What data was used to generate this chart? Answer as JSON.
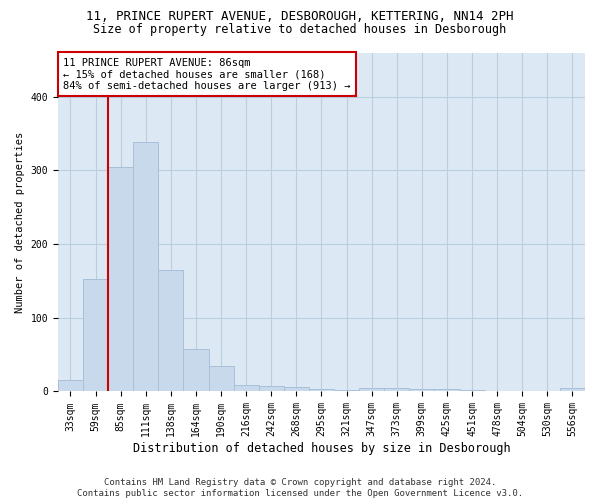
{
  "title": "11, PRINCE RUPERT AVENUE, DESBOROUGH, KETTERING, NN14 2PH",
  "subtitle": "Size of property relative to detached houses in Desborough",
  "xlabel": "Distribution of detached houses by size in Desborough",
  "ylabel": "Number of detached properties",
  "categories": [
    "33sqm",
    "59sqm",
    "85sqm",
    "111sqm",
    "138sqm",
    "164sqm",
    "190sqm",
    "216sqm",
    "242sqm",
    "268sqm",
    "295sqm",
    "321sqm",
    "347sqm",
    "373sqm",
    "399sqm",
    "425sqm",
    "451sqm",
    "478sqm",
    "504sqm",
    "530sqm",
    "556sqm"
  ],
  "values": [
    15,
    153,
    305,
    338,
    165,
    57,
    34,
    9,
    8,
    6,
    3,
    2,
    5,
    5,
    4,
    3,
    2,
    0,
    0,
    0,
    5
  ],
  "bar_color": "#c9d9ec",
  "bar_edge_color": "#a8c0d8",
  "grid_color": "#b8cfe0",
  "background_color": "#dce9f5",
  "annotation_text": "11 PRINCE RUPERT AVENUE: 86sqm\n← 15% of detached houses are smaller (168)\n84% of semi-detached houses are larger (913) →",
  "annotation_box_color": "#ffffff",
  "annotation_border_color": "#cc0000",
  "vline_color": "#cc0000",
  "footer_text": "Contains HM Land Registry data © Crown copyright and database right 2024.\nContains public sector information licensed under the Open Government Licence v3.0.",
  "ylim": [
    0,
    460
  ],
  "title_fontsize": 9,
  "subtitle_fontsize": 8.5,
  "xlabel_fontsize": 8.5,
  "ylabel_fontsize": 7.5,
  "tick_fontsize": 7,
  "footer_fontsize": 6.5,
  "vline_bar_index": 2
}
